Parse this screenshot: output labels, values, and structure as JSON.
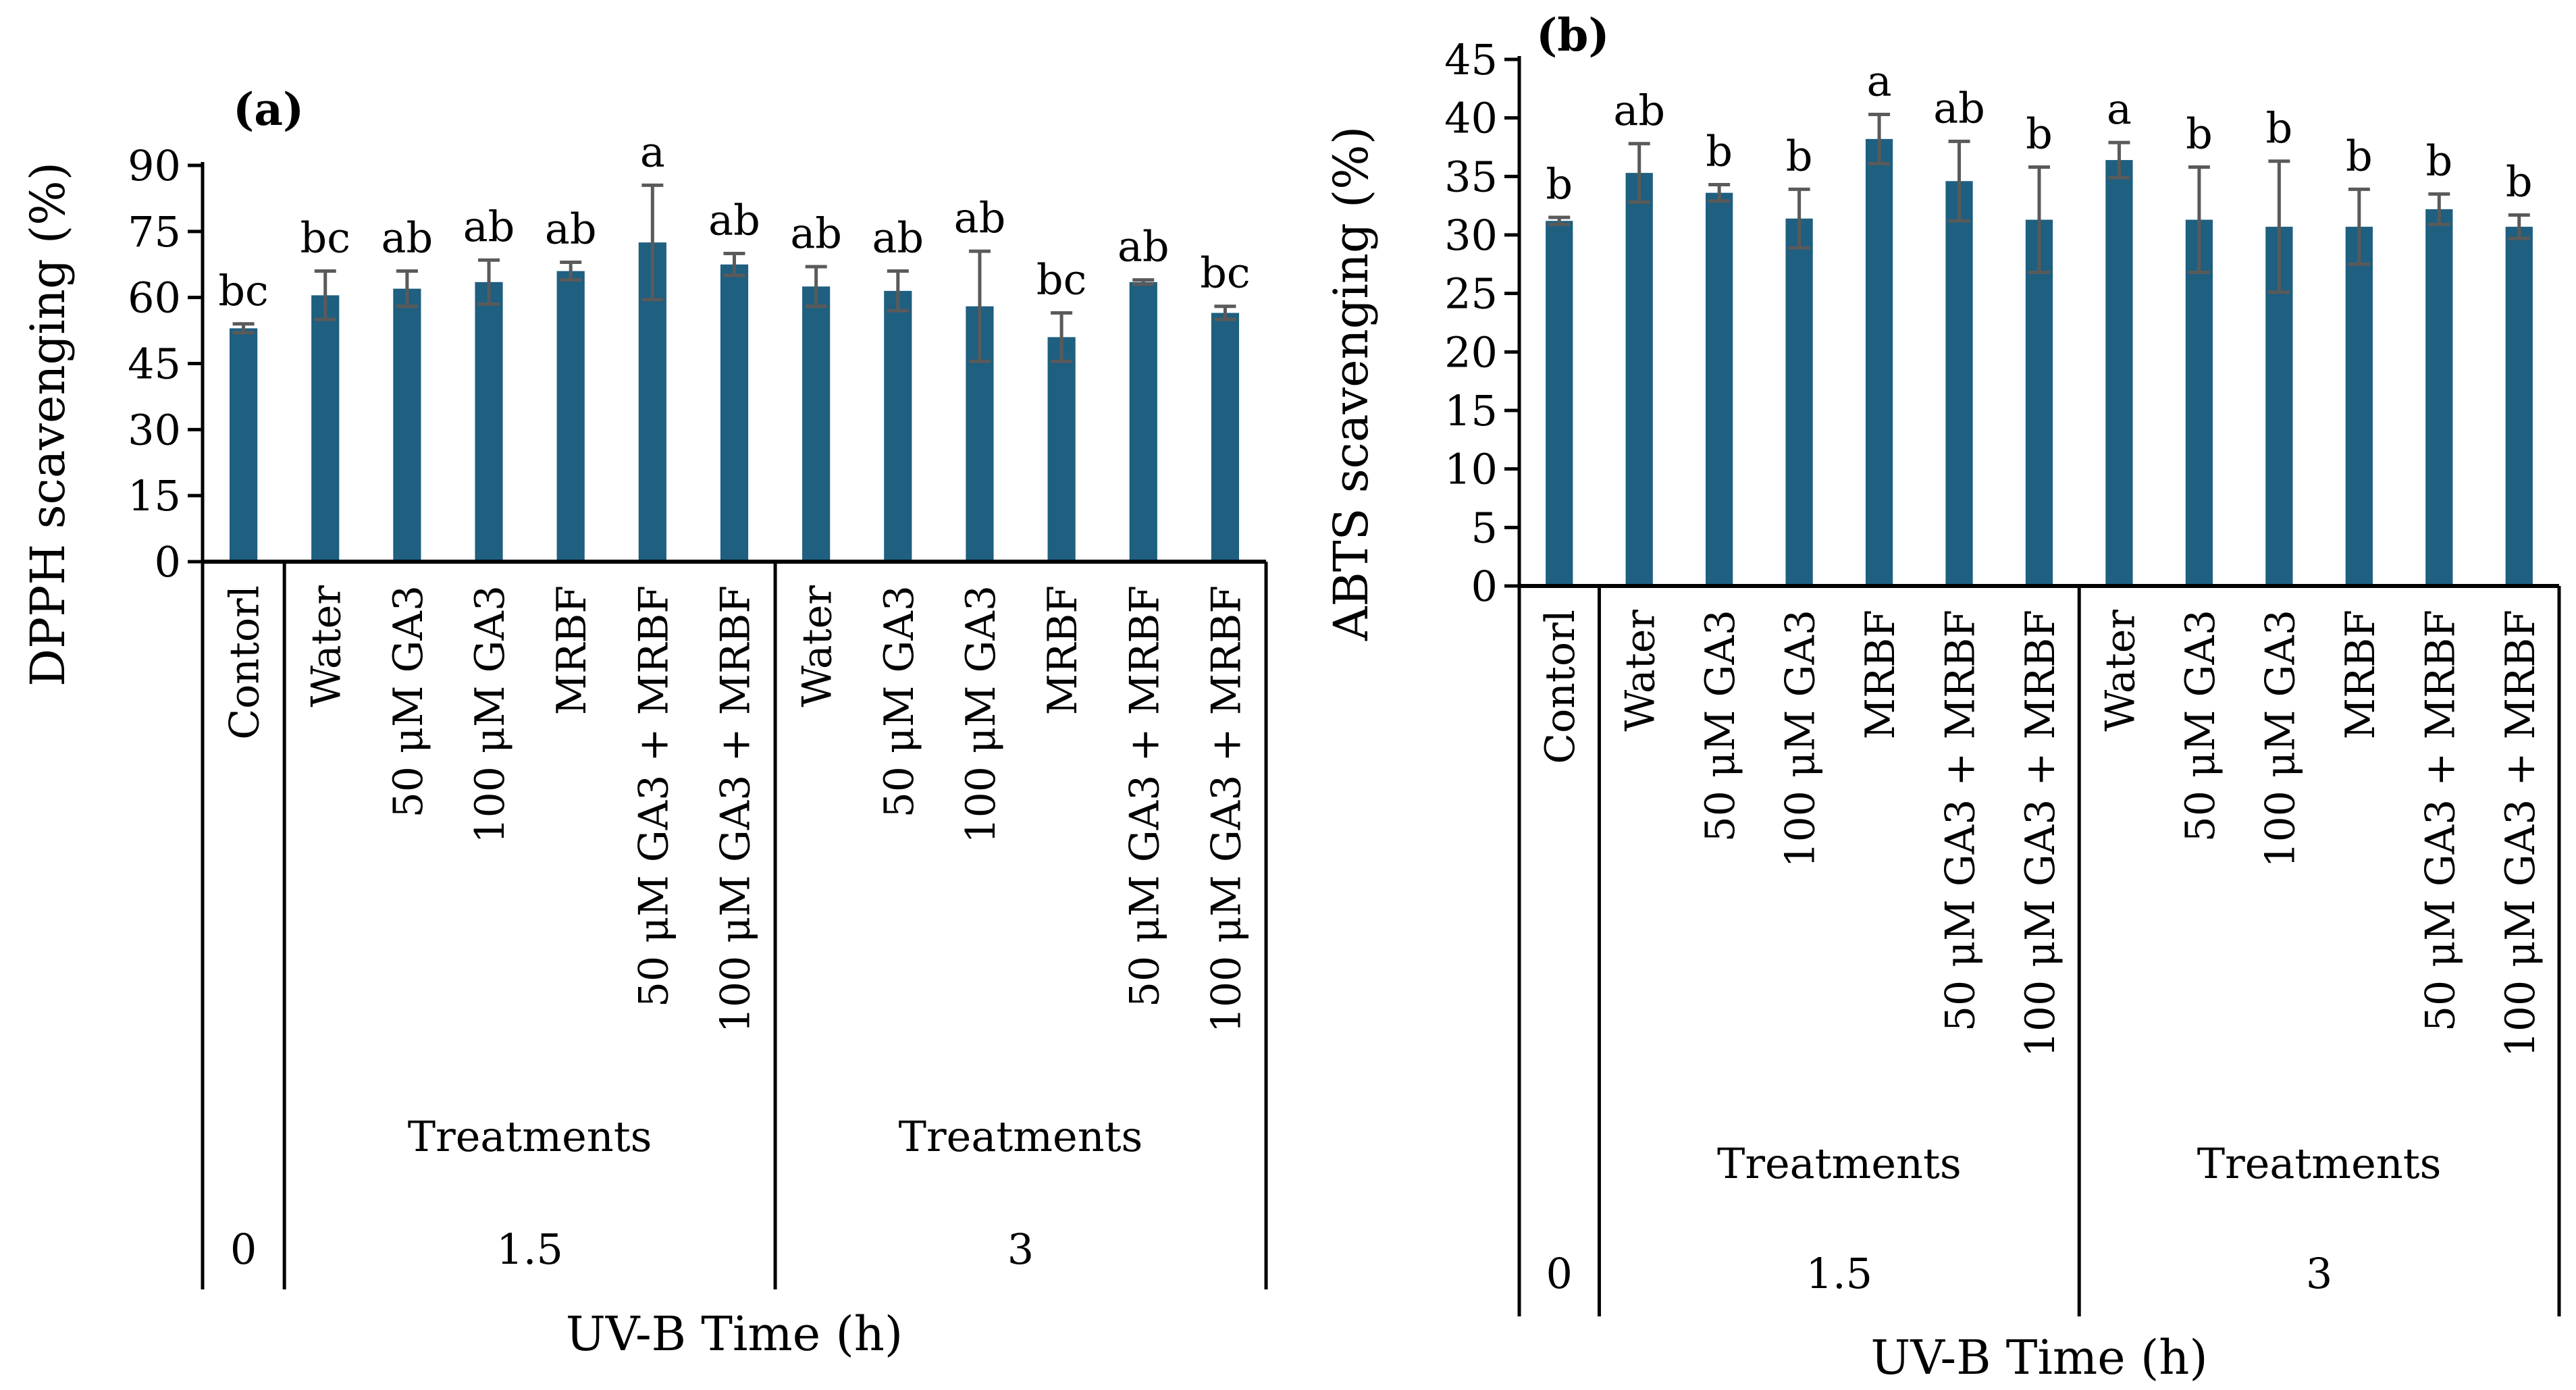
{
  "chart_data": [
    {
      "type": "bar",
      "panel_label": "(a)",
      "ylabel": "DPPH scavenging (%)",
      "xlabel": "UV-B Time (h)",
      "ylim": [
        0,
        90
      ],
      "yticks": [
        0,
        15,
        30,
        45,
        60,
        75,
        90
      ],
      "bar_color": "#1f5f80",
      "error_color": "#5a5a5a",
      "categories": [
        "Contorl",
        "Water",
        "50 μM GA3",
        "100 μM GA3",
        "MRBF",
        "50 μM GA3 + MRBF",
        "100 μM GA3 + MRBF",
        "Water",
        "50 μM GA3",
        "100 μM GA3",
        "MRBF",
        "50 μM GA3 +  MRBF",
        "100 μM GA3 + MRBF"
      ],
      "values": [
        53,
        60.5,
        62,
        63.5,
        66,
        72.5,
        67.5,
        62.5,
        61.5,
        58,
        51,
        63.5,
        56.5
      ],
      "errors": [
        1,
        5.5,
        4,
        5,
        2,
        13,
        2.5,
        4.5,
        4.5,
        12.5,
        5.5,
        0.5,
        1.5
      ],
      "letters": [
        "bc",
        "bc",
        "ab",
        "ab",
        "ab",
        "a",
        "ab",
        "ab",
        "ab",
        "ab",
        "bc",
        "ab",
        "bc"
      ],
      "groups": [
        {
          "label": "0",
          "sublabel": "",
          "count": 1
        },
        {
          "label": "1.5",
          "sublabel": "Treatments",
          "count": 6
        },
        {
          "label": "3",
          "sublabel": "Treatments",
          "count": 6
        }
      ]
    },
    {
      "type": "bar",
      "panel_label": "(b)",
      "ylabel": "ABTS scavenging (%)",
      "xlabel": "UV-B Time (h)",
      "ylim": [
        0,
        45
      ],
      "yticks": [
        0,
        5,
        10,
        15,
        20,
        25,
        30,
        35,
        40,
        45
      ],
      "bar_color": "#1f5f80",
      "error_color": "#5a5a5a",
      "categories": [
        "Contorl",
        "Water",
        "50 μM GA3",
        "100 μM GA3",
        "MRBF",
        "50 μM GA3 + MRBF",
        "100 μM GA3 + MRBF",
        "Water",
        "50 μM GA3",
        "100 μM GA3",
        "MRBF",
        "50 μM GA3 + MRBF",
        "100 μM GA3 + MRBF"
      ],
      "values": [
        31.2,
        35.3,
        33.6,
        31.4,
        38.2,
        34.6,
        31.3,
        36.4,
        31.3,
        30.7,
        30.7,
        32.2,
        30.7
      ],
      "errors": [
        0.3,
        2.5,
        0.7,
        2.5,
        2.1,
        3.4,
        4.5,
        1.5,
        4.5,
        5.6,
        3.2,
        1.3,
        1.0
      ],
      "letters": [
        "b",
        "ab",
        "b",
        "b",
        "a",
        "ab",
        "b",
        "a",
        "b",
        "b",
        "b",
        "b",
        "b"
      ],
      "groups": [
        {
          "label": "0",
          "sublabel": "",
          "count": 1
        },
        {
          "label": "1.5",
          "sublabel": "Treatments",
          "count": 6
        },
        {
          "label": "3",
          "sublabel": "Treatments",
          "count": 6
        }
      ]
    }
  ]
}
